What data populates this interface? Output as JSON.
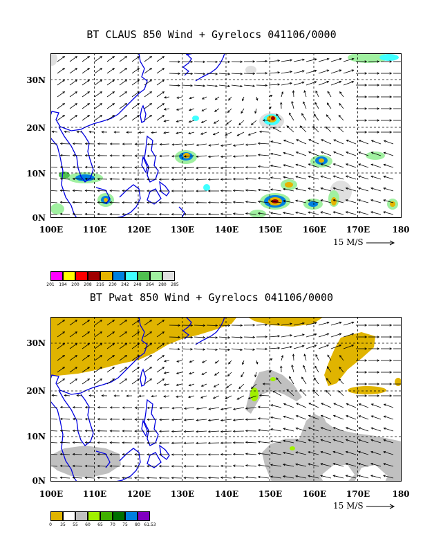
{
  "panel_top": {
    "title": "BT CLAUS 850 Wind + Gyrelocs 041106/0000",
    "y_labels": [
      "30N",
      "20N",
      "10N",
      "0N"
    ],
    "x_labels": [
      "100E",
      "110E",
      "120E",
      "130E",
      "140E",
      "150E",
      "160E",
      "170E",
      "180"
    ],
    "wind_scale_label": "15 M/S",
    "legend": {
      "colors": [
        "#ff00ff",
        "#ffff00",
        "#ff0000",
        "#a00000",
        "#e6b400",
        "#0080e0",
        "#40ffff",
        "#50c050",
        "#a0f0a0",
        "#e0e0e0"
      ],
      "levels": [
        "201",
        "194",
        "200",
        "208",
        "216",
        "230",
        "242",
        "248",
        "264",
        "280",
        "285"
      ]
    }
  },
  "panel_bottom": {
    "title": "BT Pwat 850 Wind + Gyrelocs 041106/0000",
    "y_labels": [
      "30N",
      "20N",
      "10N",
      "0N"
    ],
    "x_labels": [
      "100E",
      "110E",
      "120E",
      "130E",
      "140E",
      "150E",
      "160E",
      "170E",
      "180"
    ],
    "wind_scale_label": "15 M/S",
    "legend": {
      "colors": [
        "#e0b400",
        "#ffffff",
        "#c0c0c0",
        "#a0f000",
        "#40b000",
        "#007000",
        "#0080e0",
        "#8000c0"
      ],
      "levels": [
        "0",
        "35",
        "55",
        "60",
        "65",
        "70",
        "75",
        "80",
        "61.53"
      ]
    }
  }
}
